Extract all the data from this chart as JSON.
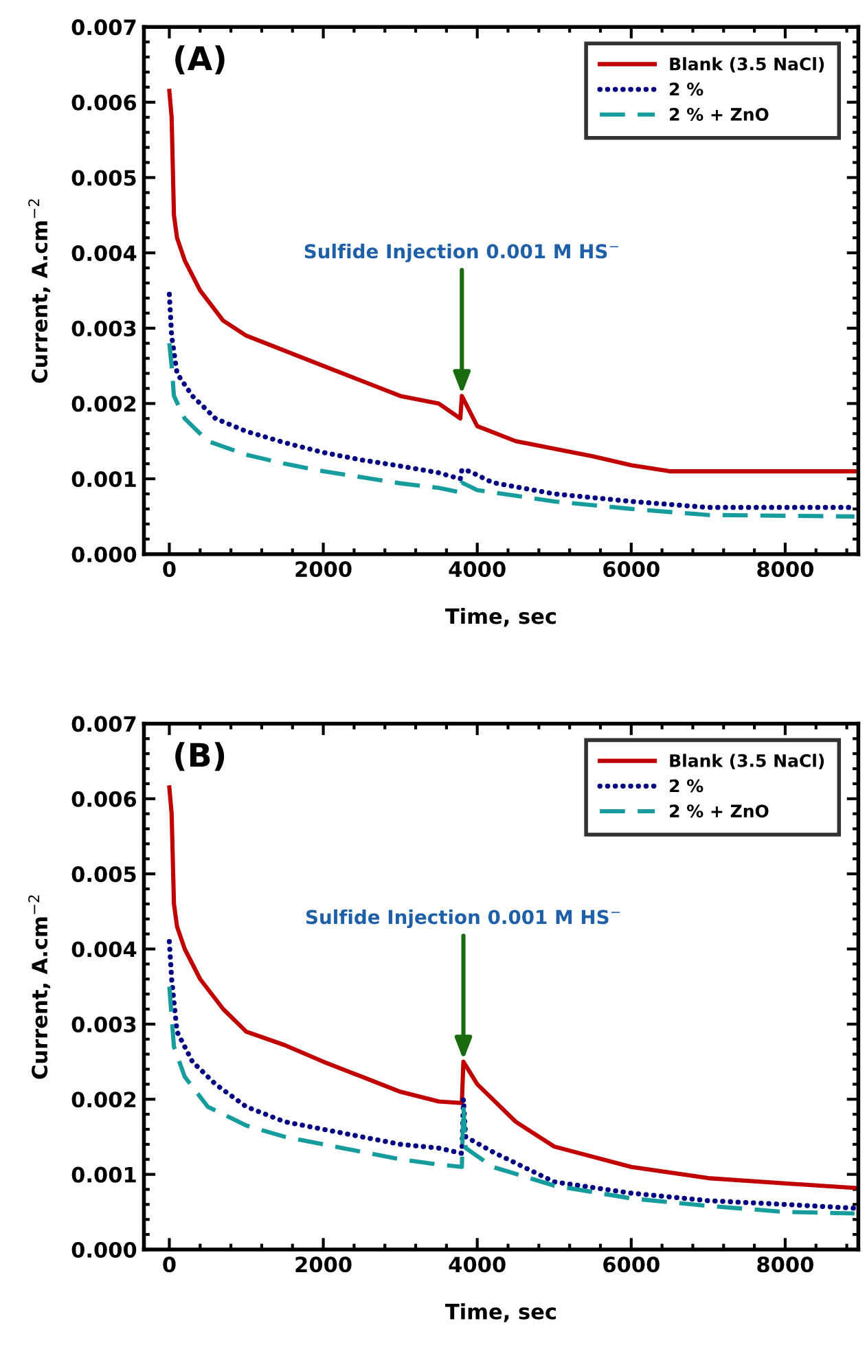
{
  "chart_data": [
    {
      "type": "line",
      "xlabel": "Time, sec",
      "ylabel": "Current, A.cm$^{−2}$",
      "xlim": [
        -330,
        8950
      ],
      "xticks": [
        0,
        2000,
        4000,
        6000,
        8000
      ],
      "ylim": [
        0,
        0.007
      ],
      "yticks": [
        {
          "value": 0,
          "label": "0.000"
        },
        {
          "value": 0.001,
          "label": "0.001"
        },
        {
          "value": 0.002,
          "label": "0.002"
        },
        {
          "value": 0.003,
          "label": "0.003"
        },
        {
          "value": 0.004,
          "label": "0.004"
        },
        {
          "value": 0.005,
          "label": "0.005"
        },
        {
          "value": 0.006,
          "label": "0.006"
        },
        {
          "value": 0.007,
          "label": "0.007"
        }
      ],
      "grid": false,
      "legend": "top right",
      "annotations": [
        "(A)",
        {
          "text": "Sulfide Injection 0.001 M HS$^{−}$",
          "x": 3800,
          "y": 0.0021
        }
      ],
      "series": [
        {
          "name": "Blank (3.5 NaCl)",
          "color": "#c00000",
          "line_style": "solid",
          "x": [
            0,
            30,
            60,
            100,
            200,
            400,
            700,
            1000,
            1500,
            2000,
            2500,
            3000,
            3500,
            3780,
            3800,
            3850,
            4000,
            4500,
            5000,
            5500,
            6000,
            6500,
            8900
          ],
          "values": [
            0.00615,
            0.0058,
            0.0045,
            0.0042,
            0.0039,
            0.0035,
            0.0031,
            0.0029,
            0.0027,
            0.0025,
            0.0023,
            0.0021,
            0.002,
            0.0018,
            0.0021,
            0.002,
            0.0017,
            0.0015,
            0.0014,
            0.0013,
            0.00118,
            0.0011,
            0.0011
          ]
        },
        {
          "name": "2 %",
          "color": "#000080",
          "line_style": "dotted",
          "x": [
            0,
            30,
            100,
            300,
            600,
            1000,
            1500,
            2000,
            2500,
            3000,
            3500,
            3780,
            3800,
            3900,
            4200,
            5000,
            6000,
            7000,
            8900
          ],
          "values": [
            0.00345,
            0.0029,
            0.0024,
            0.0021,
            0.0018,
            0.00163,
            0.00148,
            0.00135,
            0.00125,
            0.00117,
            0.00108,
            0.001,
            0.00112,
            0.0011,
            0.00095,
            0.0008,
            0.0007,
            0.00062,
            0.00062
          ]
        },
        {
          "name": "2 % + ZnO",
          "color": "#169c9c",
          "line_style": "dashed",
          "x": [
            0,
            30,
            60,
            200,
            500,
            1000,
            1500,
            2000,
            2500,
            3000,
            3500,
            3780,
            3800,
            4000,
            5000,
            6000,
            7000,
            8900
          ],
          "values": [
            0.0028,
            0.0025,
            0.0021,
            0.0018,
            0.0015,
            0.00132,
            0.0012,
            0.0011,
            0.00102,
            0.00094,
            0.00088,
            0.00082,
            0.00095,
            0.00085,
            0.0007,
            0.0006,
            0.00052,
            0.0005
          ]
        }
      ]
    },
    {
      "type": "line",
      "xlabel": "Time, sec",
      "ylabel": "Current, A.cm$^{−2}$",
      "xlim": [
        -330,
        8950
      ],
      "xticks": [
        0,
        2000,
        4000,
        6000,
        8000
      ],
      "ylim": [
        0,
        0.007
      ],
      "yticks": [
        {
          "value": 0,
          "label": "0.000"
        },
        {
          "value": 0.001,
          "label": "0.001"
        },
        {
          "value": 0.002,
          "label": "0.002"
        },
        {
          "value": 0.003,
          "label": "0.003"
        },
        {
          "value": 0.004,
          "label": "0.004"
        },
        {
          "value": 0.005,
          "label": "0.005"
        },
        {
          "value": 0.006,
          "label": "0.006"
        },
        {
          "value": 0.007,
          "label": "0.007"
        }
      ],
      "grid": false,
      "legend": "top right",
      "annotations": [
        "(B)",
        {
          "text": "Sulfide Injection 0.001 M HS$^{−}$",
          "x": 3820,
          "y": 0.0025
        }
      ],
      "series": [
        {
          "name": "Blank (3.5 NaCl)",
          "color": "#c00000",
          "line_style": "solid",
          "x": [
            0,
            30,
            60,
            100,
            200,
            400,
            700,
            1000,
            1500,
            2000,
            2500,
            3000,
            3500,
            3800,
            3820,
            4000,
            4500,
            5000,
            6000,
            7000,
            8000,
            8900
          ],
          "values": [
            0.00615,
            0.0058,
            0.0046,
            0.0043,
            0.004,
            0.0036,
            0.0032,
            0.0029,
            0.00272,
            0.0025,
            0.0023,
            0.0021,
            0.00197,
            0.00195,
            0.0025,
            0.0022,
            0.0017,
            0.00137,
            0.0011,
            0.00095,
            0.00088,
            0.00082
          ]
        },
        {
          "name": "2 %",
          "color": "#000080",
          "line_style": "dotted",
          "x": [
            0,
            30,
            100,
            300,
            600,
            1000,
            1500,
            2000,
            2500,
            3000,
            3500,
            3800,
            3820,
            3850,
            4200,
            5000,
            6000,
            7000,
            8000,
            8900
          ],
          "values": [
            0.0041,
            0.0036,
            0.0029,
            0.0025,
            0.0022,
            0.0019,
            0.0017,
            0.0016,
            0.0015,
            0.0014,
            0.00135,
            0.00128,
            0.002,
            0.0015,
            0.0013,
            0.0009,
            0.00075,
            0.00065,
            0.0006,
            0.00055
          ]
        },
        {
          "name": "2 % + ZnO",
          "color": "#169c9c",
          "line_style": "dashed",
          "x": [
            0,
            30,
            60,
            200,
            500,
            1000,
            1500,
            2000,
            2500,
            3000,
            3500,
            3800,
            3820,
            3850,
            4200,
            5000,
            6000,
            7000,
            8000,
            8900
          ],
          "values": [
            0.0035,
            0.0031,
            0.0027,
            0.0023,
            0.0019,
            0.00165,
            0.0015,
            0.0014,
            0.0013,
            0.0012,
            0.00113,
            0.0011,
            0.0019,
            0.00135,
            0.0011,
            0.00085,
            0.00068,
            0.00058,
            0.0005,
            0.00048
          ]
        }
      ]
    }
  ]
}
